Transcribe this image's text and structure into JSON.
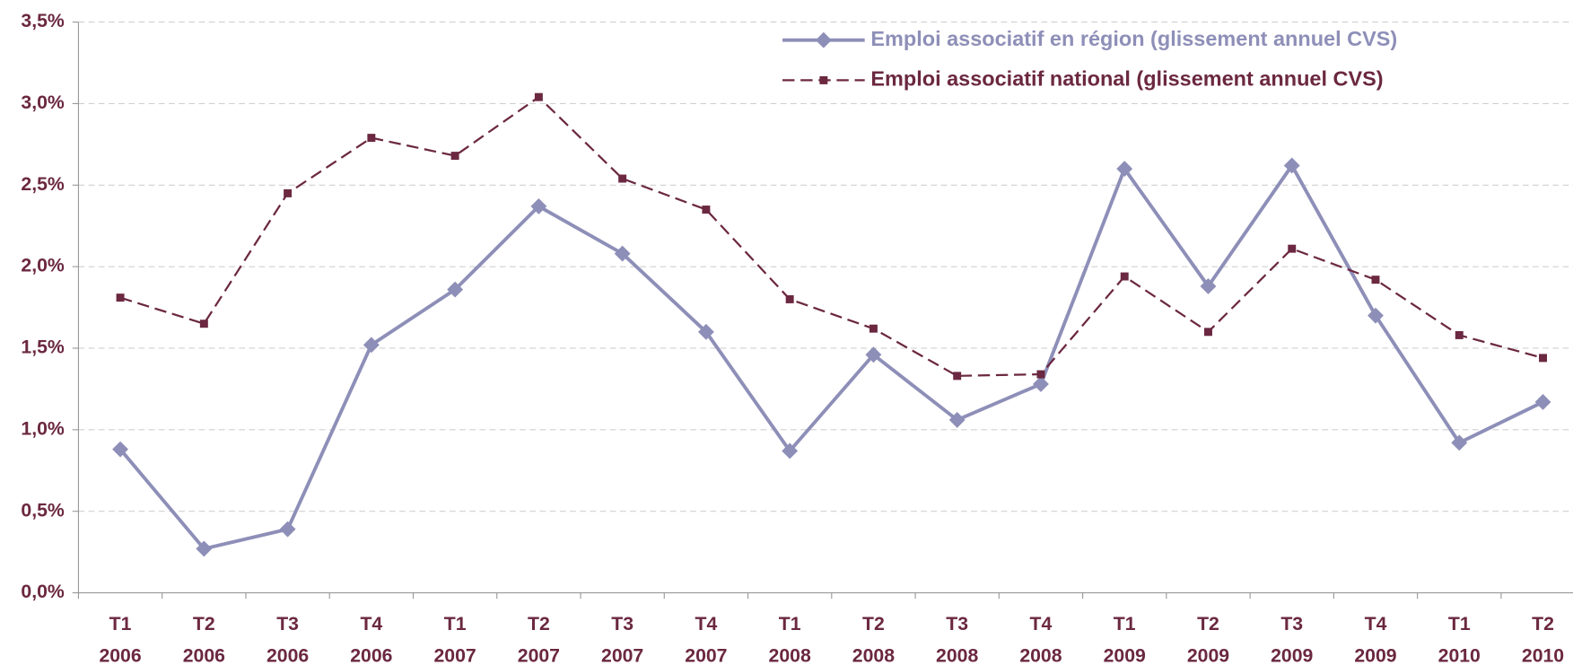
{
  "chart_data": {
    "type": "line",
    "categories": [
      [
        "T1",
        "2006"
      ],
      [
        "T2",
        "2006"
      ],
      [
        "T3",
        "2006"
      ],
      [
        "T4",
        "2006"
      ],
      [
        "T1",
        "2007"
      ],
      [
        "T2",
        "2007"
      ],
      [
        "T3",
        "2007"
      ],
      [
        "T4",
        "2007"
      ],
      [
        "T1",
        "2008"
      ],
      [
        "T2",
        "2008"
      ],
      [
        "T3",
        "2008"
      ],
      [
        "T4",
        "2008"
      ],
      [
        "T1",
        "2009"
      ],
      [
        "T2",
        "2009"
      ],
      [
        "T3",
        "2009"
      ],
      [
        "T4",
        "2009"
      ],
      [
        "T1",
        "2010"
      ],
      [
        "T2",
        "2010"
      ]
    ],
    "series": [
      {
        "name": "Emploi associatif en région (glissement annuel CVS)",
        "color": "#8e8fb8",
        "style": "solid",
        "marker": "diamond",
        "values": [
          0.88,
          0.27,
          0.39,
          1.52,
          1.86,
          2.37,
          2.08,
          1.6,
          0.87,
          1.46,
          1.06,
          1.28,
          2.6,
          1.88,
          2.62,
          1.7,
          0.92,
          1.17
        ]
      },
      {
        "name": "Emploi associatif national (glissement annuel CVS)",
        "color": "#6b2840",
        "style": "dashed",
        "marker": "square",
        "values": [
          1.81,
          1.65,
          2.45,
          2.79,
          2.68,
          3.04,
          2.54,
          2.35,
          1.8,
          1.62,
          1.33,
          1.34,
          1.94,
          1.6,
          2.11,
          1.92,
          1.58,
          1.44
        ]
      }
    ],
    "ylim": [
      0,
      3.5
    ],
    "yticks": [
      {
        "value": 0,
        "label": "0,0%"
      },
      {
        "value": 0.5,
        "label": "0,5%"
      },
      {
        "value": 1,
        "label": "1,0%"
      },
      {
        "value": 1.5,
        "label": "1,5%"
      },
      {
        "value": 2,
        "label": "2,0%"
      },
      {
        "value": 2.5,
        "label": "2,5%"
      },
      {
        "value": 3,
        "label": "3,0%"
      },
      {
        "value": 3.5,
        "label": "3,5%"
      }
    ],
    "grid": true,
    "legend": "top-right"
  }
}
